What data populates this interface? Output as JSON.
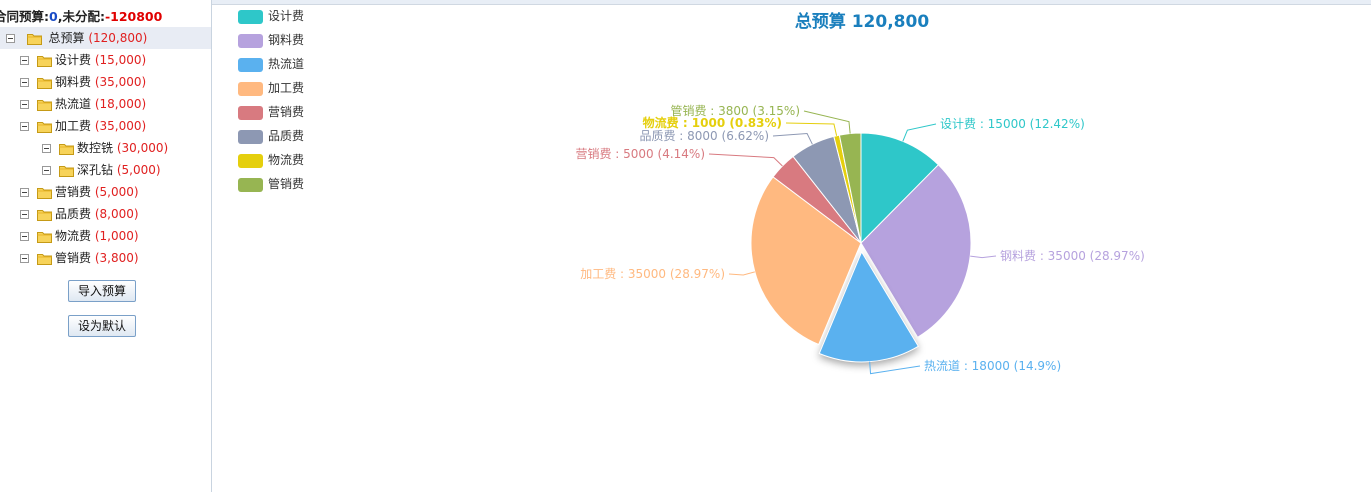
{
  "summary": {
    "prefix": "合同预算:",
    "contract_value": "0",
    "mid": ",未分配:",
    "unallocated": "-120800"
  },
  "tree": {
    "root": {
      "label": "总预算",
      "amount": "(120,800)"
    },
    "items": [
      {
        "label": "设计费",
        "amount": "(15,000)"
      },
      {
        "label": "钢料费",
        "amount": "(35,000)"
      },
      {
        "label": "热流道",
        "amount": "(18,000)"
      },
      {
        "label": "加工费",
        "amount": "(35,000)"
      },
      {
        "label": "数控铣",
        "amount": "(30,000)"
      },
      {
        "label": "深孔钻",
        "amount": "(5,000)"
      },
      {
        "label": "营销费",
        "amount": "(5,000)"
      },
      {
        "label": "品质费",
        "amount": "(8,000)"
      },
      {
        "label": "物流费",
        "amount": "(1,000)"
      },
      {
        "label": "管销费",
        "amount": "(3,800)"
      }
    ]
  },
  "buttons": {
    "import": "导入预算",
    "set_default": "设为默认"
  },
  "chart_data": {
    "type": "pie",
    "title": "总预算 120,800",
    "legend_position": "top-left",
    "slices": [
      {
        "name": "设计费",
        "value": 15000,
        "percent_label": "12.42%",
        "color": "#2ec7c9",
        "label": "设计费 : 15000 (12.42%)"
      },
      {
        "name": "钢料费",
        "value": 35000,
        "percent_label": "28.97%",
        "color": "#b6a2de",
        "label": "钢料费 : 35000 (28.97%)"
      },
      {
        "name": "热流道",
        "value": 18000,
        "percent_label": "14.9%",
        "color": "#5ab1ef",
        "label": "热流道 : 18000 (14.9%)"
      },
      {
        "name": "加工费",
        "value": 35000,
        "percent_label": "28.97%",
        "color": "#ffb980",
        "label": "加工费 : 35000 (28.97%)"
      },
      {
        "name": "营销费",
        "value": 5000,
        "percent_label": "4.14%",
        "color": "#d87a80",
        "label": "营销费 : 5000 (4.14%)"
      },
      {
        "name": "品质费",
        "value": 8000,
        "percent_label": "6.62%",
        "color": "#8d98b3",
        "label": "品质费 : 8000 (6.62%)"
      },
      {
        "name": "物流费",
        "value": 1000,
        "percent_label": "0.83%",
        "color": "#e5cf0d",
        "label": "物流费 : 1000 (0.83%)"
      },
      {
        "name": "管销费",
        "value": 3800,
        "percent_label": "3.15%",
        "color": "#97b552",
        "label": "管销费 : 3800 (3.15%)"
      }
    ],
    "highlighted": "热流道"
  }
}
